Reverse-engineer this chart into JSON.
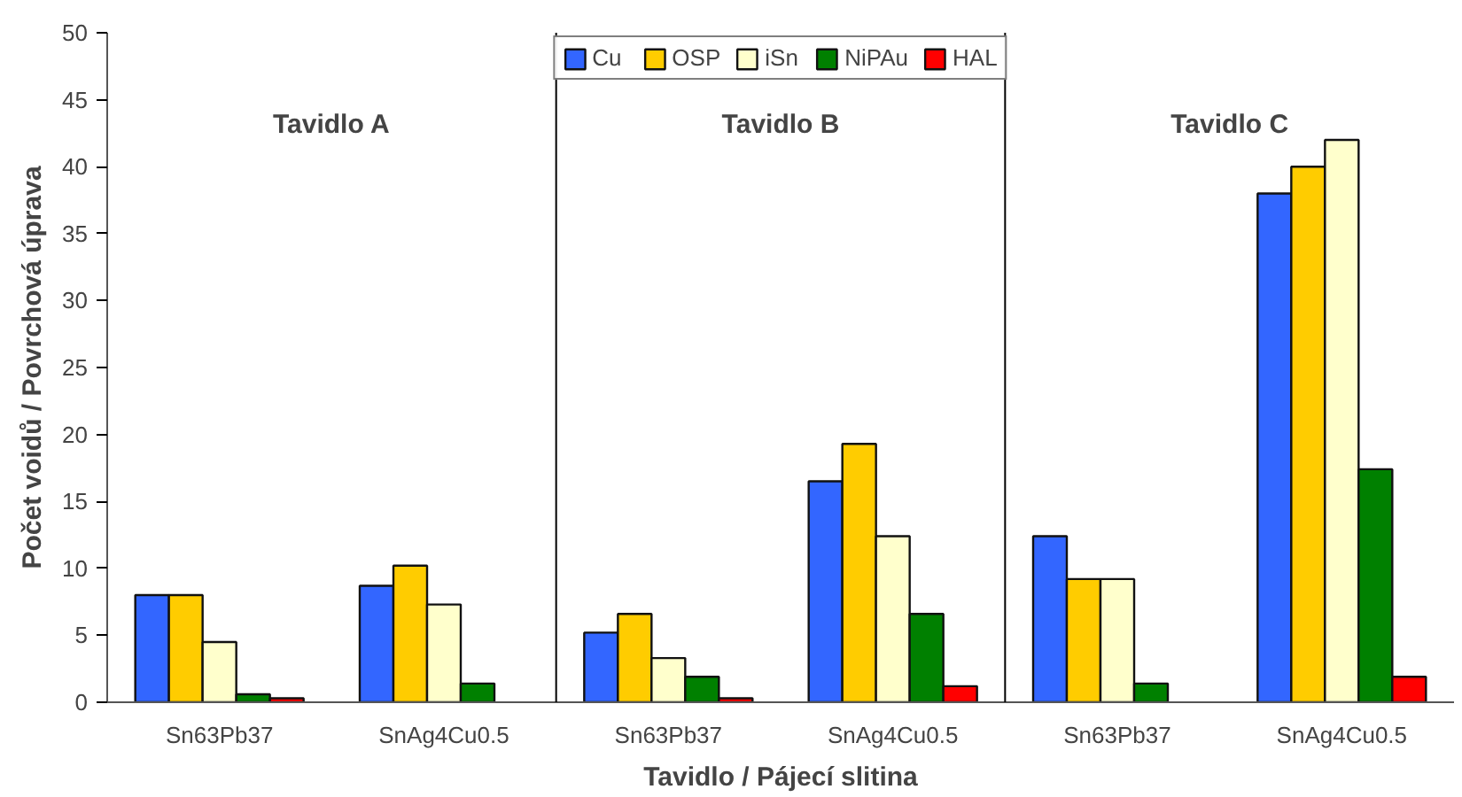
{
  "chart_data": {
    "type": "bar",
    "xlabel": "Tavidlo / Pájecí slitina",
    "ylabel": "Počet voidů / Povrchová úprava",
    "categories": [
      "Sn63Pb37",
      "SnAg4Cu0.5",
      "Sn63Pb37",
      "SnAg4Cu0.5",
      "Sn63Pb37",
      "SnAg4Cu0.5"
    ],
    "series": [
      {
        "name": "Cu",
        "color": "#3366ff",
        "values": [
          8,
          8.7,
          5.2,
          16.5,
          12.4,
          38
        ]
      },
      {
        "name": "OSP",
        "color": "#ffcc00",
        "values": [
          8,
          10.2,
          6.6,
          19.3,
          9.2,
          40
        ]
      },
      {
        "name": "iSn",
        "color": "#ffffcc",
        "values": [
          4.5,
          7.3,
          3.3,
          12.4,
          9.2,
          42
        ]
      },
      {
        "name": "NiPAu",
        "color": "#008000",
        "values": [
          0.6,
          1.4,
          1.9,
          6.6,
          1.4,
          17.4
        ]
      },
      {
        "name": "HAL",
        "color": "#ff0000",
        "values": [
          0.3,
          null,
          0.3,
          1.2,
          null,
          1.9
        ]
      }
    ],
    "ylim": [
      0,
      50
    ],
    "yticks": [
      0,
      5,
      10,
      15,
      20,
      25,
      30,
      35,
      40,
      45,
      50
    ],
    "annotations": [
      "Tavidlo A",
      "Tavidlo B",
      "Tavidlo C"
    ],
    "grid": false,
    "legend": "top"
  }
}
